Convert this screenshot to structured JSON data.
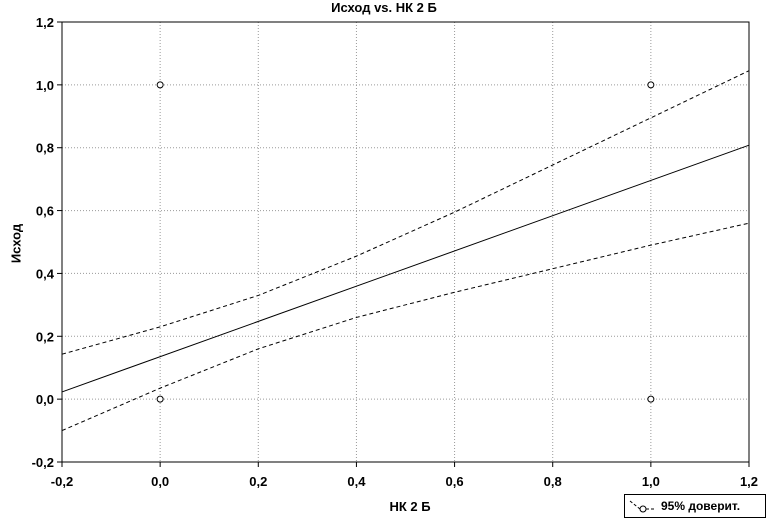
{
  "chart_data": {
    "type": "scatter",
    "title": "Исход vs. НК 2 Б",
    "xlabel": "НК 2 Б",
    "ylabel": "Исход",
    "xlim": [
      -0.2,
      1.2
    ],
    "ylim": [
      -0.2,
      1.2
    ],
    "x_ticks": [
      "-0,2",
      "0,0",
      "0,2",
      "0,4",
      "0,6",
      "0,8",
      "1,0",
      "1,2"
    ],
    "y_ticks": [
      "-0,2",
      "0,0",
      "0,2",
      "0,4",
      "0,6",
      "0,8",
      "1,0",
      "1,2"
    ],
    "grid": true,
    "legend_position": "bottom-right",
    "legend_label": "95% доверит.",
    "points": [
      {
        "x": 0.0,
        "y": 1.0
      },
      {
        "x": 0.0,
        "y": 0.0
      },
      {
        "x": 1.0,
        "y": 1.0
      },
      {
        "x": 1.0,
        "y": 0.0
      }
    ],
    "regression": {
      "x": [
        -0.2,
        1.2
      ],
      "y": [
        0.023,
        0.808
      ]
    },
    "ci_upper": {
      "x": [
        -0.2,
        0.0,
        0.2,
        0.4,
        0.6,
        0.8,
        1.0,
        1.2
      ],
      "y": [
        0.143,
        0.23,
        0.33,
        0.455,
        0.595,
        0.745,
        0.895,
        1.045
      ]
    },
    "ci_lower": {
      "x": [
        -0.2,
        0.0,
        0.2,
        0.4,
        0.6,
        0.8,
        1.0,
        1.2
      ],
      "y": [
        -0.1,
        0.035,
        0.16,
        0.26,
        0.34,
        0.415,
        0.49,
        0.56
      ]
    }
  }
}
